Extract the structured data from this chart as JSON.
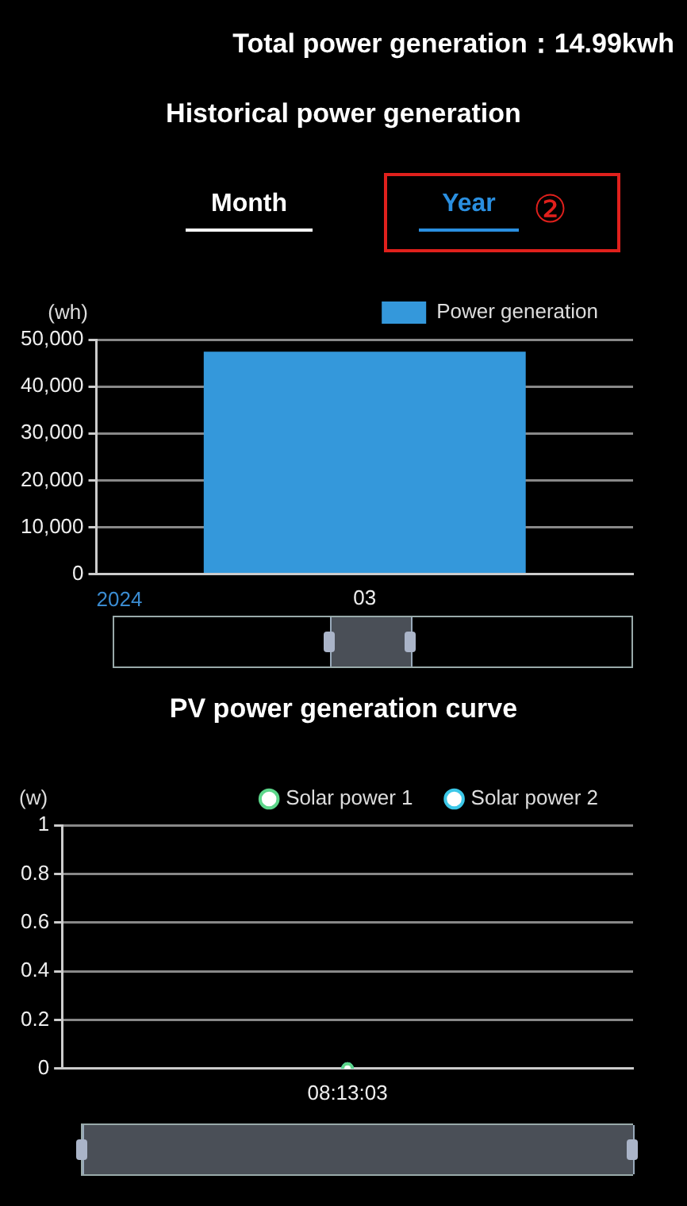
{
  "chart_data": [
    {
      "type": "bar",
      "title": "Historical power generation",
      "annotations": [
        "Total power generation：14.99kwh",
        "Month",
        "Year",
        "②"
      ],
      "xlabel": "2024",
      "ylabel": "(wh)",
      "categories": [
        "03"
      ],
      "series": [
        {
          "name": "Power generation",
          "color": "#3498db",
          "values": [
            47400
          ]
        }
      ],
      "ylim": [
        0,
        50000
      ],
      "yticks": [
        0,
        {
          "value": 10000,
          "label": "10,000"
        },
        {
          "value": 20000,
          "label": "20,000"
        },
        {
          "value": 30000,
          "label": "30,000"
        },
        {
          "value": 40000,
          "label": "40,000"
        },
        {
          "value": 50000,
          "label": "50,000"
        }
      ],
      "grid": "y",
      "legend": "top right"
    },
    {
      "type": "line",
      "title": "PV power generation curve",
      "ylabel": "(w)",
      "categories": [
        "08:13:03"
      ],
      "series": [
        {
          "name": "Solar power 1",
          "color": "#5cd68a",
          "values": [
            0
          ]
        },
        {
          "name": "Solar power 2",
          "color": "#3cc8e8",
          "values": [
            0
          ]
        }
      ],
      "ylim": [
        0,
        1
      ],
      "yticks": [
        0,
        0.2,
        0.4,
        0.6,
        0.8,
        1
      ],
      "grid": "y",
      "legend": "top right",
      "marker": "circle"
    }
  ]
}
